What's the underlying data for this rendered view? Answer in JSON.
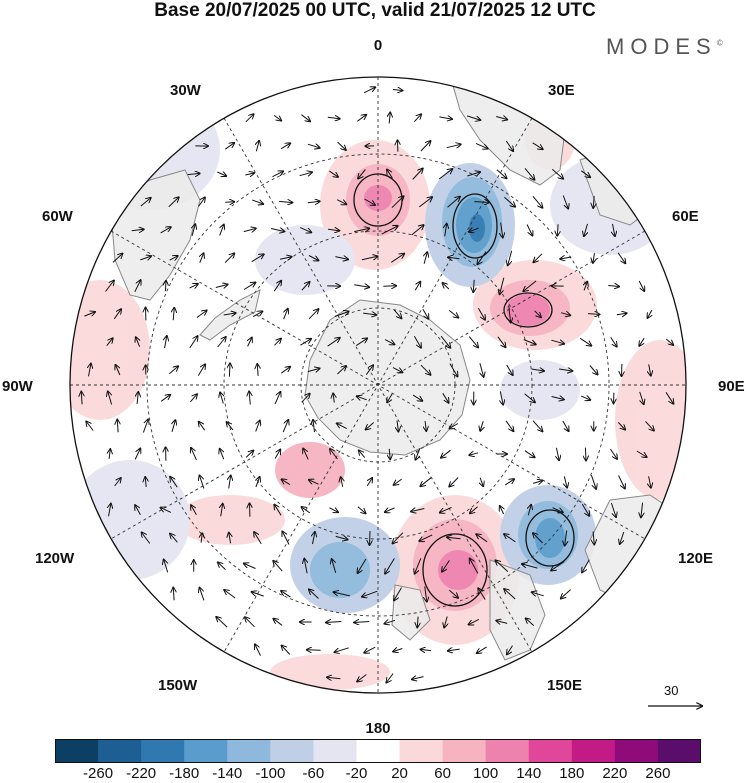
{
  "title": "Base 20/07/2025 00 UTC, valid 21/07/2025 12 UTC",
  "brand": "MODES",
  "brand_mark": "©",
  "map_labels": {
    "top": "0",
    "bottom": "180",
    "left": "90W",
    "right": "90E",
    "upper_left_1": "30W",
    "upper_left_2": "60W",
    "upper_right_1": "30E",
    "upper_right_2": "60E",
    "lower_left_1": "120W",
    "lower_left_2": "150W",
    "lower_right_1": "120E",
    "lower_right_2": "150E"
  },
  "vector_scale_label": "30",
  "colorbar": {
    "ticks": [
      "-260",
      "-220",
      "-180",
      "-140",
      "-100",
      "-60",
      "-20",
      "20",
      "60",
      "100",
      "140",
      "180",
      "220",
      "260"
    ],
    "colors": [
      "#0d3f64",
      "#1d5f92",
      "#2f78b0",
      "#5a9ccb",
      "#8fb9dc",
      "#bfcfe6",
      "#e5e5f2",
      "#ffffff",
      "#fbd9da",
      "#f6b3c0",
      "#ee82ae",
      "#e0479a",
      "#c21b86",
      "#8e0b79",
      "#5b0d6b"
    ]
  },
  "colors": {
    "land": "#ebebeb",
    "coast": "#888888",
    "grid": "#333333"
  }
}
